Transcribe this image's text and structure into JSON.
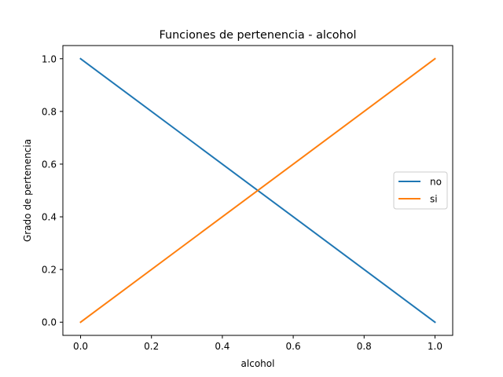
{
  "chart_data": {
    "type": "line",
    "title": "Funciones de pertenencia - alcohol",
    "xlabel": "alcohol",
    "ylabel": "Grado de pertenencia",
    "xlim": [
      -0.05,
      1.05
    ],
    "ylim": [
      -0.05,
      1.05
    ],
    "xticks": [
      0.0,
      0.2,
      0.4,
      0.6,
      0.8,
      1.0
    ],
    "xtick_labels": [
      "0.0",
      "0.2",
      "0.4",
      "0.6",
      "0.8",
      "1.0"
    ],
    "yticks": [
      0.0,
      0.2,
      0.4,
      0.6,
      0.8,
      1.0
    ],
    "ytick_labels": [
      "0.0",
      "0.2",
      "0.4",
      "0.6",
      "0.8",
      "1.0"
    ],
    "grid": false,
    "legend_position": "center-right",
    "series": [
      {
        "name": "no",
        "color": "#1f77b4",
        "x": [
          0.0,
          1.0
        ],
        "y": [
          1.0,
          0.0
        ]
      },
      {
        "name": "si",
        "color": "#ff7f0e",
        "x": [
          0.0,
          1.0
        ],
        "y": [
          0.0,
          1.0
        ]
      }
    ]
  }
}
